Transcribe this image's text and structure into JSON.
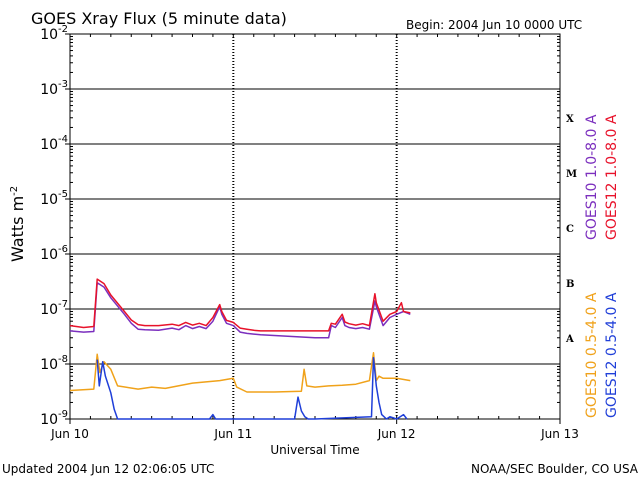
{
  "chart_data": {
    "type": "line",
    "title": "GOES Xray Flux (5 minute data)",
    "begin_label": "Begin:  2004 Jun 10 0000 UTC",
    "xlabel": "Universal Time",
    "ylabel": "Watts m",
    "ylabel_superscript": "-2",
    "footer_left": "Updated 2004 Jun 12 02:06:05 UTC",
    "footer_right": "NOAA/SEC Boulder, CO USA",
    "y_scale": "log",
    "ylim": [
      1e-09,
      0.01
    ],
    "xlim": [
      "2004-06-10 00:00",
      "2004-06-13 00:00"
    ],
    "y_ticks": [
      {
        "value": 1e-09,
        "base": "10",
        "exp": "-9"
      },
      {
        "value": 1e-08,
        "base": "10",
        "exp": "-8"
      },
      {
        "value": 1e-07,
        "base": "10",
        "exp": "-7"
      },
      {
        "value": 1e-06,
        "base": "10",
        "exp": "-6"
      },
      {
        "value": 1e-05,
        "base": "10",
        "exp": "-5"
      },
      {
        "value": 0.0001,
        "base": "10",
        "exp": "-4"
      },
      {
        "value": 0.001,
        "base": "10",
        "exp": "-3"
      },
      {
        "value": 0.01,
        "base": "10",
        "exp": "-2"
      }
    ],
    "x_ticks": [
      {
        "hour": 0,
        "label": "Jun 10"
      },
      {
        "hour": 24,
        "label": "Jun 11"
      },
      {
        "hour": 48,
        "label": "Jun 12"
      },
      {
        "hour": 72,
        "label": "Jun 13"
      }
    ],
    "flare_classes": [
      {
        "label": "A",
        "value": 3e-08
      },
      {
        "label": "B",
        "value": 3e-07
      },
      {
        "label": "C",
        "value": 3e-06
      },
      {
        "label": "M",
        "value": 3e-05
      },
      {
        "label": "X",
        "value": 0.0003
      }
    ],
    "legend_right": [
      {
        "label": "GOES10 1.0-8.0 A",
        "color": "#7b2fbe"
      },
      {
        "label": "GOES12 1.0-8.0 A",
        "color": "#e8122a"
      }
    ],
    "legend_lower": [
      {
        "label": "GOES10 0.5-4.0 A",
        "color": "#f0a21a"
      },
      {
        "label": "GOES12 0.5-4.0 A",
        "color": "#1f3fd9"
      }
    ],
    "colors": {
      "goes10_long": "#7b2fbe",
      "goes12_long": "#e8122a",
      "goes10_short": "#f0a21a",
      "goes12_short": "#1f3fd9"
    },
    "series": [
      {
        "name": "GOES10 1.0-8.0 A",
        "color": "#7b2fbe",
        "x_hours": [
          0,
          2,
          3.5,
          4,
          5,
          6,
          8,
          9,
          10,
          11,
          13,
          15,
          16,
          17,
          18,
          19,
          20,
          21,
          22,
          22.3,
          23,
          24,
          25,
          26,
          27,
          28,
          30,
          32,
          34,
          36,
          38,
          38.4,
          39,
          40,
          40.4,
          41,
          42,
          43,
          44,
          44.8,
          45,
          46,
          47,
          48,
          49,
          50
        ],
        "values": [
          4e-08,
          3.8e-08,
          3.9e-08,
          3e-07,
          2.5e-07,
          1.6e-07,
          8e-08,
          5.5e-08,
          4.3e-08,
          4.2e-08,
          4.1e-08,
          4.5e-08,
          4.2e-08,
          5e-08,
          4.4e-08,
          4.8e-08,
          4.4e-08,
          6e-08,
          1.1e-07,
          8e-08,
          5.5e-08,
          5e-08,
          3.8e-08,
          3.6e-08,
          3.5e-08,
          3.4e-08,
          3.3e-08,
          3.2e-08,
          3.1e-08,
          3e-08,
          3e-08,
          5e-08,
          4.6e-08,
          7e-08,
          5e-08,
          4.6e-08,
          4.4e-08,
          4.6e-08,
          4.3e-08,
          1.4e-07,
          1.1e-07,
          5e-08,
          7e-08,
          8e-08,
          9e-08,
          8e-08
        ]
      },
      {
        "name": "GOES12 1.0-8.0 A",
        "color": "#e8122a",
        "x_hours": [
          0,
          2,
          3.5,
          4,
          5,
          6,
          8,
          9,
          10,
          11,
          13,
          15,
          16,
          17,
          18,
          19,
          20,
          21,
          22,
          22.3,
          23,
          24,
          25,
          26,
          27,
          28,
          30,
          32,
          34,
          36,
          38,
          38.4,
          39,
          40,
          40.4,
          41,
          42,
          43,
          44,
          44.8,
          45,
          46,
          47,
          48,
          48.7,
          49,
          50
        ],
        "values": [
          5e-08,
          4.6e-08,
          4.8e-08,
          3.5e-07,
          2.9e-07,
          1.8e-07,
          9e-08,
          6.3e-08,
          5.2e-08,
          5e-08,
          5e-08,
          5.3e-08,
          5e-08,
          5.7e-08,
          5.1e-08,
          5.5e-08,
          5e-08,
          7e-08,
          1.2e-07,
          9e-08,
          6.2e-08,
          5.7e-08,
          4.5e-08,
          4.3e-08,
          4.1e-08,
          4e-08,
          4e-08,
          4e-08,
          4e-08,
          4e-08,
          4e-08,
          5.5e-08,
          5.3e-08,
          8e-08,
          5.8e-08,
          5.4e-08,
          5.1e-08,
          5.4e-08,
          5e-08,
          1.9e-07,
          1.3e-07,
          6e-08,
          8e-08,
          9e-08,
          1.3e-07,
          9e-08,
          8.5e-08
        ]
      },
      {
        "name": "GOES10 0.5-4.0 A",
        "color": "#f0a21a",
        "x_hours": [
          0,
          3.5,
          4,
          4.4,
          5,
          6,
          7,
          10,
          12,
          14,
          18,
          22,
          24,
          24.5,
          26,
          30,
          34,
          34.4,
          34.8,
          36,
          38,
          40,
          42,
          44,
          44.6,
          45,
          45.4,
          46,
          48,
          50
        ],
        "values": [
          3.3e-09,
          3.5e-09,
          1.5e-08,
          7e-09,
          1.1e-08,
          8e-09,
          4e-09,
          3.5e-09,
          3.8e-09,
          3.6e-09,
          4.5e-09,
          5e-09,
          5.5e-09,
          3.8e-09,
          3.1e-09,
          3.1e-09,
          3.2e-09,
          8e-09,
          4e-09,
          3.8e-09,
          4e-09,
          4.1e-09,
          4.3e-09,
          5e-09,
          1.6e-08,
          5e-09,
          6e-09,
          5.5e-09,
          5.5e-09,
          5e-09
        ]
      },
      {
        "name": "GOES12 0.5-4.0 A",
        "color": "#1f3fd9",
        "x_hours": [
          4,
          4.3,
          4.8,
          5.2,
          6,
          6.5,
          7,
          7.5,
          8,
          10,
          12,
          14,
          18,
          20.5,
          21,
          21.4,
          33,
          33.5,
          34,
          34.5,
          35,
          36,
          44.3,
          44.6,
          45,
          45.4,
          45.8,
          46.5,
          47,
          48,
          49,
          49.5
        ],
        "values": [
          1.2e-08,
          4e-09,
          1.1e-08,
          6e-09,
          3e-09,
          1.5e-09,
          1e-09,
          1e-09,
          1e-09,
          1e-09,
          1e-09,
          1e-09,
          1e-09,
          1e-09,
          1.2e-09,
          1e-09,
          1e-09,
          2.5e-09,
          1.4e-09,
          1.1e-09,
          1e-09,
          1e-09,
          1.1e-09,
          1.3e-08,
          4e-09,
          2e-09,
          1.2e-09,
          1e-09,
          1.1e-09,
          1e-09,
          1.2e-09,
          1e-09
        ]
      }
    ]
  }
}
